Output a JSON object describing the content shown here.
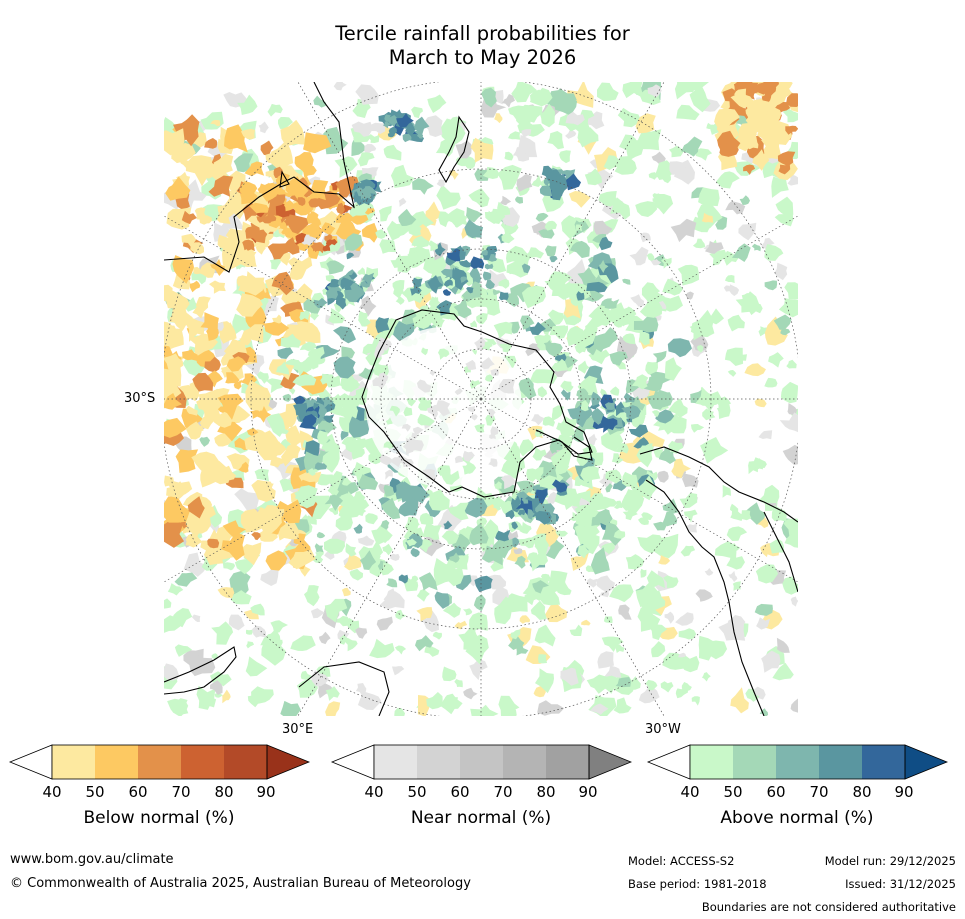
{
  "title": {
    "line1": "Tercile rainfall probabilities for",
    "line2": "March to May 2026"
  },
  "map": {
    "projection": "south-polar-stereographic",
    "lat_label": "30°S",
    "lon_labels": [
      "30°E",
      "30°W"
    ],
    "colors": {
      "below": [
        "#fde9a0",
        "#fdc962",
        "#e3914a",
        "#cd6231",
        "#b34a28",
        "#99321a"
      ],
      "near": [
        "#e5e5e5",
        "#d3d3d3",
        "#c4c4c4",
        "#b4b4b4",
        "#a1a1a1",
        "#808080"
      ],
      "above": [
        "#c9f8c9",
        "#a4d8b7",
        "#7eb6ae",
        "#5a96a0",
        "#33679b",
        "#0f4d85"
      ]
    }
  },
  "colorbars": [
    {
      "label": "Below normal (%)",
      "ticks": [
        "40",
        "50",
        "60",
        "70",
        "80",
        "90"
      ],
      "colors": [
        "#fde9a0",
        "#fdc962",
        "#e3914a",
        "#cd6231",
        "#b34a28",
        "#99321a"
      ]
    },
    {
      "label": "Near normal (%)",
      "ticks": [
        "40",
        "50",
        "60",
        "70",
        "80",
        "90"
      ],
      "colors": [
        "#e5e5e5",
        "#d3d3d3",
        "#c4c4c4",
        "#b4b4b4",
        "#a1a1a1",
        "#808080"
      ]
    },
    {
      "label": "Above normal (%)",
      "ticks": [
        "40",
        "50",
        "60",
        "70",
        "80",
        "90"
      ],
      "colors": [
        "#c9f8c9",
        "#a4d8b7",
        "#7eb6ae",
        "#5a96a0",
        "#33679b",
        "#0f4d85"
      ]
    }
  ],
  "footer": {
    "url": "www.bom.gov.au/climate",
    "copyright": "© Commonwealth of Australia 2025, Australian Bureau of Meteorology",
    "model": "Model: ACCESS-S2",
    "model_run": "Model run: 29/12/2025",
    "base_period": "Base period: 1981-2018",
    "issued": "Issued: 31/12/2025",
    "disclaimer": "Boundaries are not considered authoritative"
  }
}
